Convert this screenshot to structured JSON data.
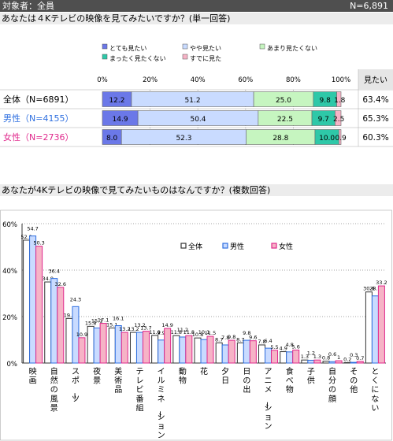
{
  "header": {
    "target": "対象者：全員",
    "n_total": "N=6,891"
  },
  "q1": {
    "question": "あなたは４Kテレビの映像を見てみたいですか？(単一回答)"
  },
  "q2": {
    "question": "あなたが4Kテレビの映像で見てみたいものはなんですか？(複数回答)"
  },
  "colors": {
    "c1": "#6b78e8",
    "c2": "#c9dbff",
    "c3": "#c6f5c0",
    "c4": "#2ec8a8",
    "c5": "#f6b3c6",
    "male": "#2e6fe0",
    "female": "#e0288c",
    "header_bg": "#4f4f4f"
  },
  "chart_data": [
    {
      "type": "bar",
      "orientation": "horizontal-stacked-100",
      "categories": [
        "とても見たい",
        "やや見たい",
        "あまり見たくない",
        "まったく見たくない",
        "すでに見た"
      ],
      "xlim": [
        0,
        100
      ],
      "xticks": [
        "0%",
        "20%",
        "40%",
        "60%",
        "80%",
        "100%"
      ],
      "extra_column_header": "見たい",
      "rows": [
        {
          "label": "全体（N=6891）",
          "values": [
            12.2,
            51.2,
            25.0,
            9.8,
            1.8
          ],
          "value_labels": [
            "12.2",
            "51.2",
            "25.0",
            "9.8",
            "1.8"
          ],
          "want": "63.4%"
        },
        {
          "label": "男性（N=4155）",
          "values": [
            14.9,
            50.4,
            22.5,
            9.7,
            2.5
          ],
          "value_labels": [
            "14.9",
            "50.4",
            "22.5",
            "9.7",
            "2.5"
          ],
          "want": "65.3%"
        },
        {
          "label": "女性（N=2736）",
          "values": [
            8.0,
            52.3,
            28.8,
            10.0,
            0.9
          ],
          "value_labels": [
            "8.0",
            "52.3",
            "28.8",
            "10.0",
            "0.9"
          ],
          "want": "60.3%"
        }
      ]
    },
    {
      "type": "bar",
      "categories": [
        "映画",
        "自然の風景",
        "スポーツ",
        "夜景",
        "美術品",
        "テレビ番組",
        "イルミネーション",
        "動物",
        "花",
        "夕日",
        "日の出",
        "アニメーション",
        "食べ物",
        "子供",
        "自分の顔",
        "その他",
        "とくにない"
      ],
      "series": [
        {
          "name": "全体",
          "values": [
            52.9,
            34.9,
            19.2,
            15.8,
            15.1,
            13.2,
            11.9,
            11.8,
            10.8,
            8.7,
            8.7,
            7.8,
            4.9,
            1.3,
            0.8,
            0.2,
            30.6
          ]
        },
        {
          "name": "男性",
          "values": [
            54.7,
            36.4,
            24.3,
            15.1,
            16.1,
            13.2,
            9.9,
            11.2,
            10.1,
            7.8,
            9.8,
            6.4,
            4.8,
            1.2,
            0.6,
            0.3,
            28.9
          ]
        },
        {
          "name": "女性",
          "values": [
            50.3,
            32.6,
            10.9,
            17.1,
            13.2,
            13.7,
            14.9,
            11.8,
            11.5,
            9.8,
            9.6,
            5.5,
            5.6,
            1.3,
            1.0,
            0.7,
            33.2
          ]
        }
      ],
      "ylim": [
        0,
        60
      ],
      "yticks": [
        "0%",
        "20%",
        "40%",
        "60%"
      ]
    }
  ]
}
